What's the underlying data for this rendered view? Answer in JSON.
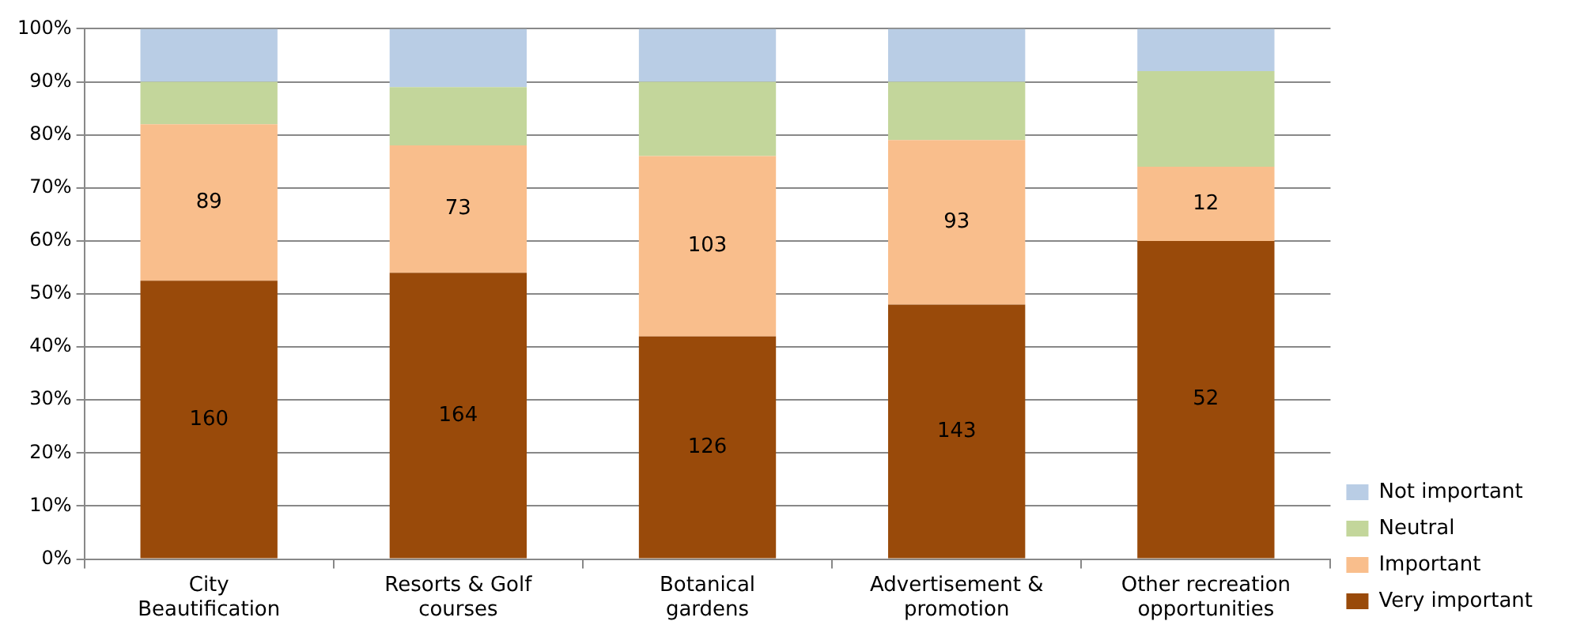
{
  "chart_data": {
    "type": "bar",
    "stacked": true,
    "categories": [
      "City Beautification",
      "Resorts & Golf courses",
      "Botanical gardens",
      "Advertisement & promotion",
      "Other recreation opportunities"
    ],
    "series": [
      {
        "name": "Very important",
        "color": "#994a0a",
        "values": [
          52.5,
          54,
          42,
          48,
          60
        ]
      },
      {
        "name": "Important",
        "color": "#f9be8c",
        "values": [
          29.5,
          24,
          34,
          31,
          14
        ]
      },
      {
        "name": "Neutral",
        "color": "#c3d69b",
        "values": [
          8,
          11,
          14,
          11,
          18
        ]
      },
      {
        "name": "Not important",
        "color": "#b9cde5",
        "values": [
          10,
          11,
          10,
          10,
          8
        ]
      }
    ],
    "annotations": [
      "160",
      "89",
      "164",
      "73",
      "126",
      "103",
      "143",
      "93",
      "52",
      "12"
    ],
    "ylim": [
      0,
      100
    ],
    "yticks": [
      {
        "value": 0,
        "label": "0%"
      },
      {
        "value": 10,
        "label": "10%"
      },
      {
        "value": 20,
        "label": "20%"
      },
      {
        "value": 30,
        "label": "30%"
      },
      {
        "value": 40,
        "label": "40%"
      },
      {
        "value": 50,
        "label": "50%"
      },
      {
        "value": 60,
        "label": "60%"
      },
      {
        "value": 70,
        "label": "70%"
      },
      {
        "value": 80,
        "label": "80%"
      },
      {
        "value": 90,
        "label": "90%"
      },
      {
        "value": 100,
        "label": "100%"
      }
    ],
    "grid": "y",
    "legend": "bottom right"
  }
}
